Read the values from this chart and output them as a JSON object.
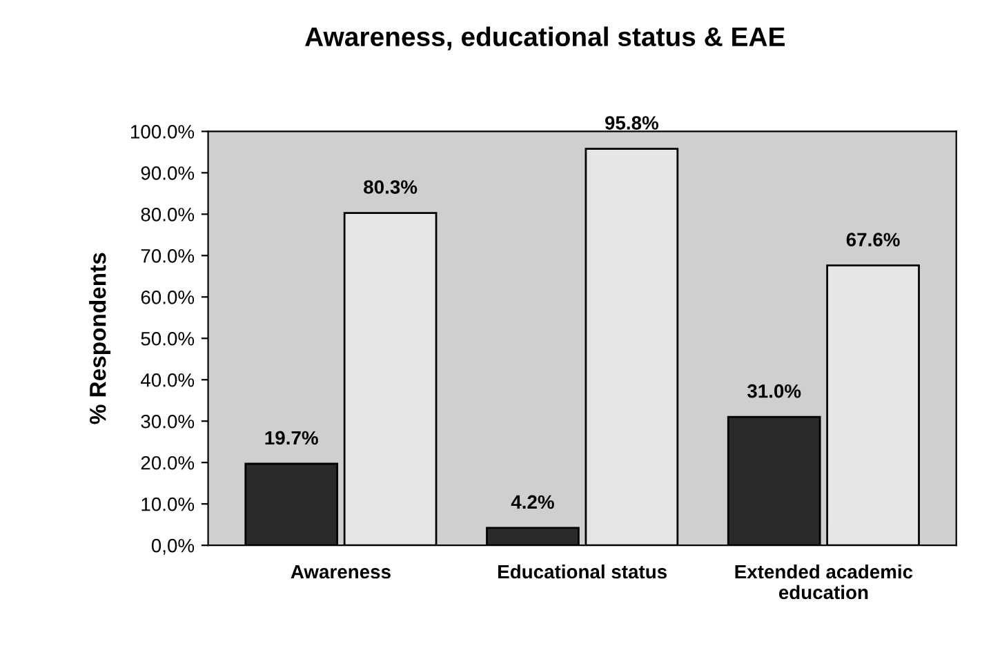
{
  "chart_data": {
    "type": "bar",
    "title": "Awareness, educational status & EAE",
    "ylabel": "% Respondents",
    "categories": [
      "Awareness",
      "Educational status",
      "Extended academic\neducation"
    ],
    "series": [
      {
        "color": "#2a2a2a",
        "values": [
          19.7,
          4.2,
          31.0
        ],
        "value_labels": [
          "19.7%",
          "4.2%",
          "31.0%"
        ]
      },
      {
        "color": "#e6e6e6",
        "values": [
          80.3,
          95.8,
          67.6
        ],
        "value_labels": [
          "80.3%",
          "95.8%",
          "67.6%"
        ]
      }
    ],
    "ylim": [
      0,
      100
    ],
    "yticks": [
      {
        "value": 0,
        "label": "0,0%"
      },
      {
        "value": 10,
        "label": "10.0%"
      },
      {
        "value": 20,
        "label": "20.0%"
      },
      {
        "value": 30,
        "label": "30.0%"
      },
      {
        "value": 40,
        "label": "40.0%"
      },
      {
        "value": 50,
        "label": "50.0%"
      },
      {
        "value": 60,
        "label": "60.0%"
      },
      {
        "value": 70,
        "label": "70.0%"
      },
      {
        "value": 80,
        "label": "80.0%"
      },
      {
        "value": 90,
        "label": "90.0%"
      },
      {
        "value": 100,
        "label": "100.0%"
      }
    ],
    "grid": false,
    "legend": false
  }
}
